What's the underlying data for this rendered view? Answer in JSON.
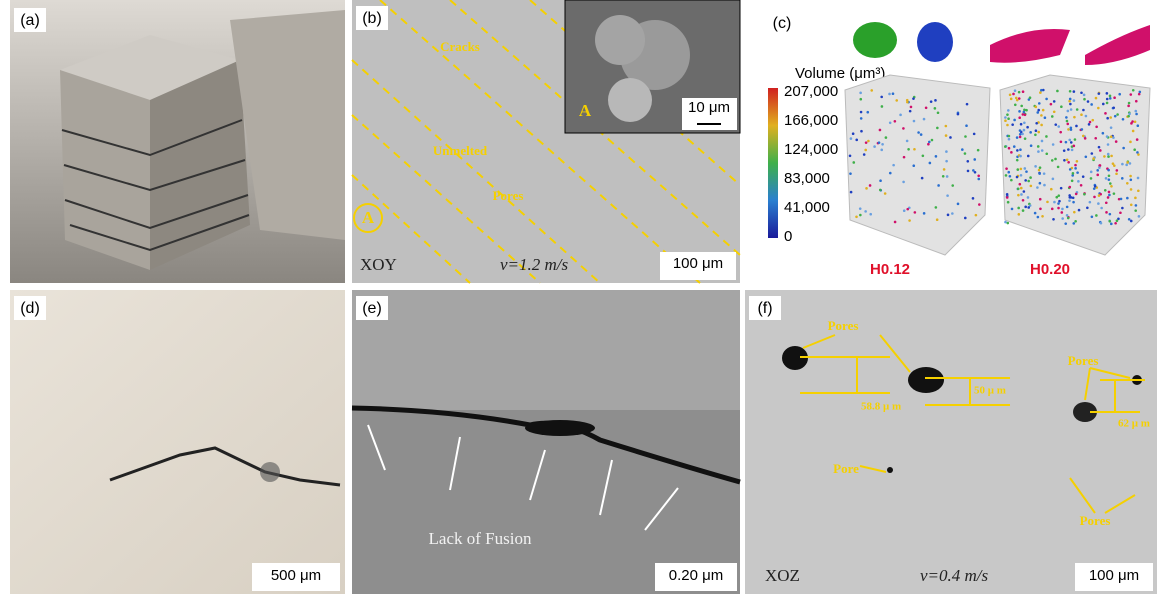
{
  "panels": {
    "a": {
      "label": "(a)"
    },
    "b": {
      "label": "(b)",
      "annotations": [
        "Cracks",
        "Unmelted",
        "Pores"
      ],
      "marker": "A",
      "inset_marker": "A",
      "inset_scale": "10 μm",
      "plane": "XOY",
      "speed": "v=1.2 m/s",
      "scale": "100 μm"
    },
    "c": {
      "label": "(c)",
      "colorbar_title": "Volume (μm³)",
      "colorbar_ticks": [
        "207,000",
        "166,000",
        "124,000",
        "83,000",
        "41,000",
        "0"
      ],
      "samples": [
        "H0.12",
        "H0.20"
      ]
    },
    "d": {
      "label": "(d)",
      "scale": "500 μm"
    },
    "e": {
      "label": "(e)",
      "annotation": "Lack of Fusion",
      "scale": "0.20 μm"
    },
    "f": {
      "label": "(f)",
      "annotations": [
        "Pores",
        "Pores",
        "Pore",
        "Pores"
      ],
      "measurements": [
        "58.8 μ m",
        "50 μ m",
        "62 μ m"
      ],
      "plane": "XOZ",
      "speed": "v=0.4 m/s",
      "scale": "100 μm"
    }
  }
}
